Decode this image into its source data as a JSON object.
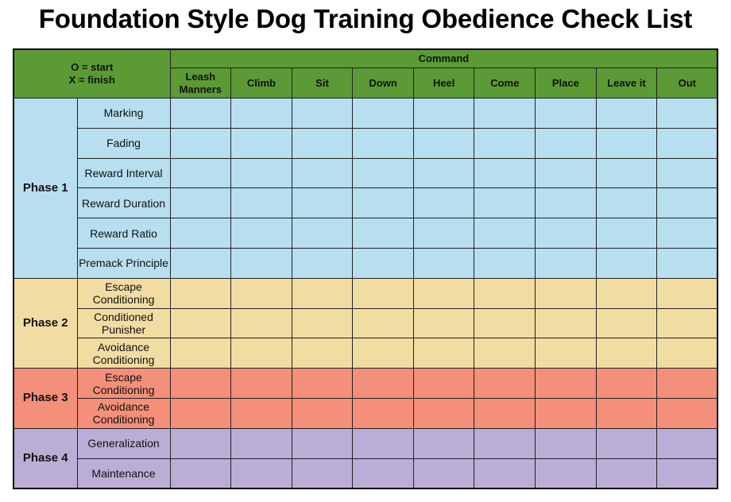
{
  "title": "Foundation Style Dog Training Obedience Check List",
  "legend": {
    "line1": "O = start",
    "line2": "X = finish"
  },
  "command_header": "Command",
  "commands": [
    "Leash Manners",
    "Climb",
    "Sit",
    "Down",
    "Heel",
    "Come",
    "Place",
    "Leave it",
    "Out"
  ],
  "phases": [
    {
      "label": "Phase 1",
      "color": "#b7dff0",
      "items": [
        "Marking",
        "Fading",
        "Reward Interval",
        "Reward Duration",
        "Reward Ratio",
        "Premack Principle"
      ]
    },
    {
      "label": "Phase 2",
      "color": "#f1dca2",
      "items": [
        "Escape Conditioning",
        "Conditioned Punisher",
        "Avoidance Conditioning"
      ]
    },
    {
      "label": "Phase 3",
      "color": "#f48f79",
      "items": [
        "Escape Conditioning",
        "Avoidance Conditioning"
      ]
    },
    {
      "label": "Phase 4",
      "color": "#bbaed6",
      "items": [
        "Generalization",
        "Maintenance"
      ]
    }
  ]
}
